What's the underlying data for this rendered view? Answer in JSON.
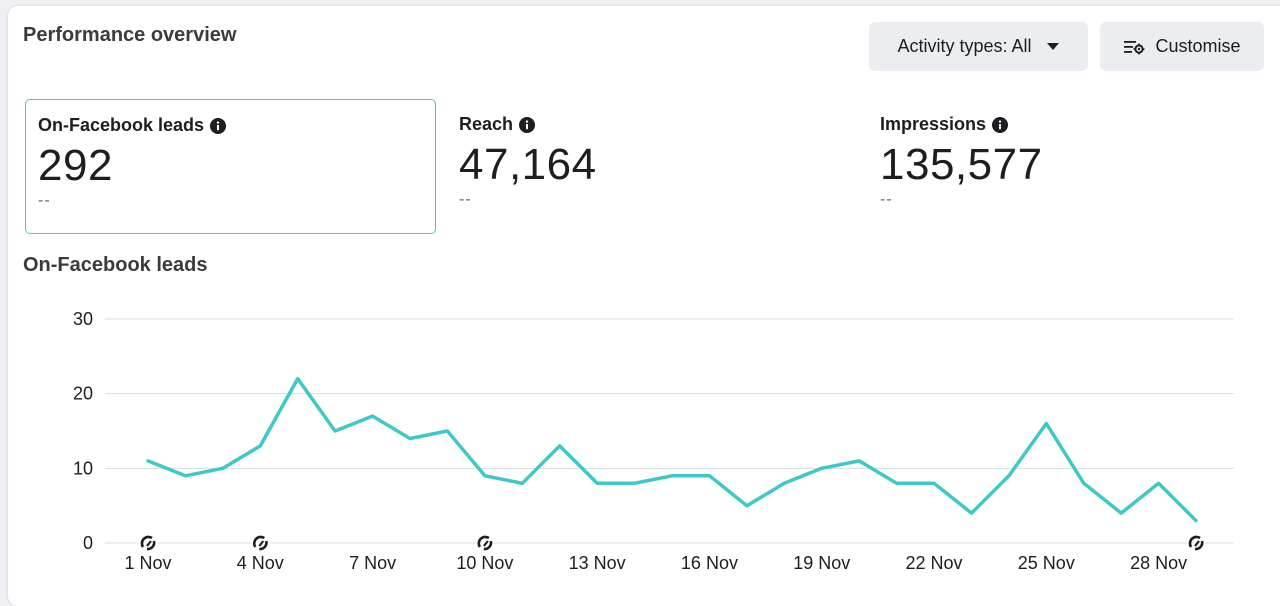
{
  "header": {
    "title": "Performance overview",
    "activity_button_label": "Activity types: All",
    "customise_button_label": "Customise"
  },
  "metrics": [
    {
      "label": "On-Facebook leads",
      "value": "292",
      "comparison": "--",
      "selected": true
    },
    {
      "label": "Reach",
      "value": "47,164",
      "comparison": "--",
      "selected": false
    },
    {
      "label": "Impressions",
      "value": "135,577",
      "comparison": "--",
      "selected": false
    }
  ],
  "chart_title": "On-Facebook leads",
  "colors": {
    "line": "#3ec8c8",
    "selected_border": "#46c8d2",
    "grid": "#dadde1"
  },
  "chart_data": {
    "type": "line",
    "title": "",
    "xlabel": "",
    "ylabel": "",
    "ylim": [
      0,
      30
    ],
    "yticks": [
      0,
      10,
      20,
      30
    ],
    "grid": true,
    "x": [
      "1 Nov",
      "2 Nov",
      "3 Nov",
      "4 Nov",
      "5 Nov",
      "6 Nov",
      "7 Nov",
      "8 Nov",
      "9 Nov",
      "10 Nov",
      "11 Nov",
      "12 Nov",
      "13 Nov",
      "14 Nov",
      "15 Nov",
      "16 Nov",
      "17 Nov",
      "18 Nov",
      "19 Nov",
      "20 Nov",
      "21 Nov",
      "22 Nov",
      "23 Nov",
      "24 Nov",
      "25 Nov",
      "26 Nov",
      "27 Nov",
      "28 Nov",
      "29 Nov"
    ],
    "x_tick_labels": [
      "1 Nov",
      "4 Nov",
      "7 Nov",
      "10 Nov",
      "13 Nov",
      "16 Nov",
      "19 Nov",
      "22 Nov",
      "25 Nov",
      "28 Nov"
    ],
    "series": [
      {
        "values": [
          11,
          9,
          10,
          13,
          22,
          15,
          17,
          14,
          15,
          9,
          8,
          13,
          8,
          8,
          9,
          9,
          5,
          8,
          10,
          11,
          8,
          8,
          4,
          9,
          16,
          8,
          4,
          8,
          3
        ]
      }
    ],
    "event_markers": [
      "1 Nov",
      "4 Nov",
      "10 Nov",
      "29 Nov"
    ]
  }
}
